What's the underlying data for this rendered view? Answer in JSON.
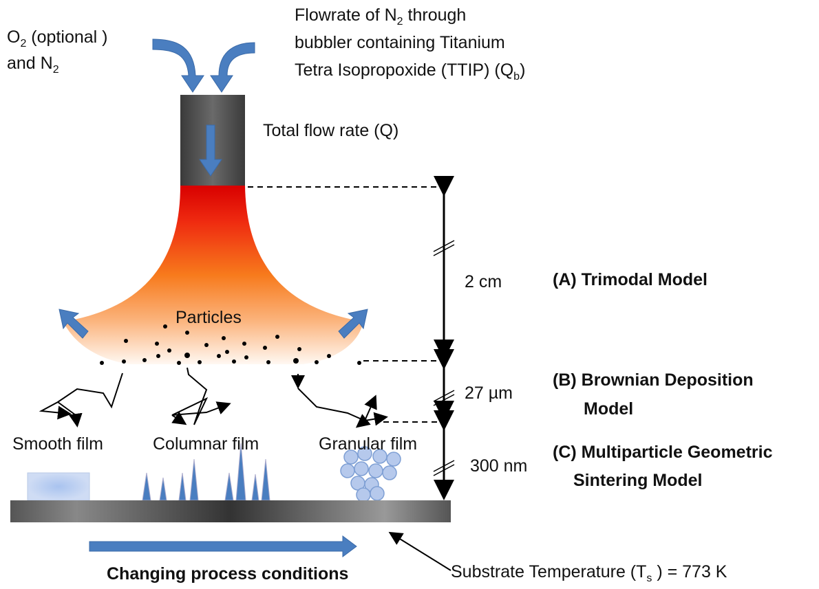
{
  "inlets": {
    "oxygen": {
      "line1": [
        "O",
        "2",
        " (optional )"
      ],
      "line2": [
        "and N",
        "2"
      ]
    },
    "precursor": {
      "line1": [
        "Flowrate of N",
        "2",
        " through"
      ],
      "line2": "bubbler containing Titanium",
      "line3": [
        "Tetra Isopropoxide (TTIP) (Q",
        "b",
        ")"
      ]
    }
  },
  "total_flow": "Total flow rate  (Q)",
  "particles": "Particles",
  "distances": [
    "2 cm",
    "27 µm",
    "300 nm"
  ],
  "models": [
    [
      "(A) Trimodal Model"
    ],
    [
      "(B) Brownian Deposition",
      "Model"
    ],
    [
      "(C) Multiparticle Geometric",
      "Sintering Model"
    ]
  ],
  "films": [
    "Smooth film",
    "Columnar film",
    "Granular film"
  ],
  "process": "Changing process conditions",
  "substrate": [
    "Substrate Temperature (T",
    "s",
    " ) = 773 K"
  ]
}
